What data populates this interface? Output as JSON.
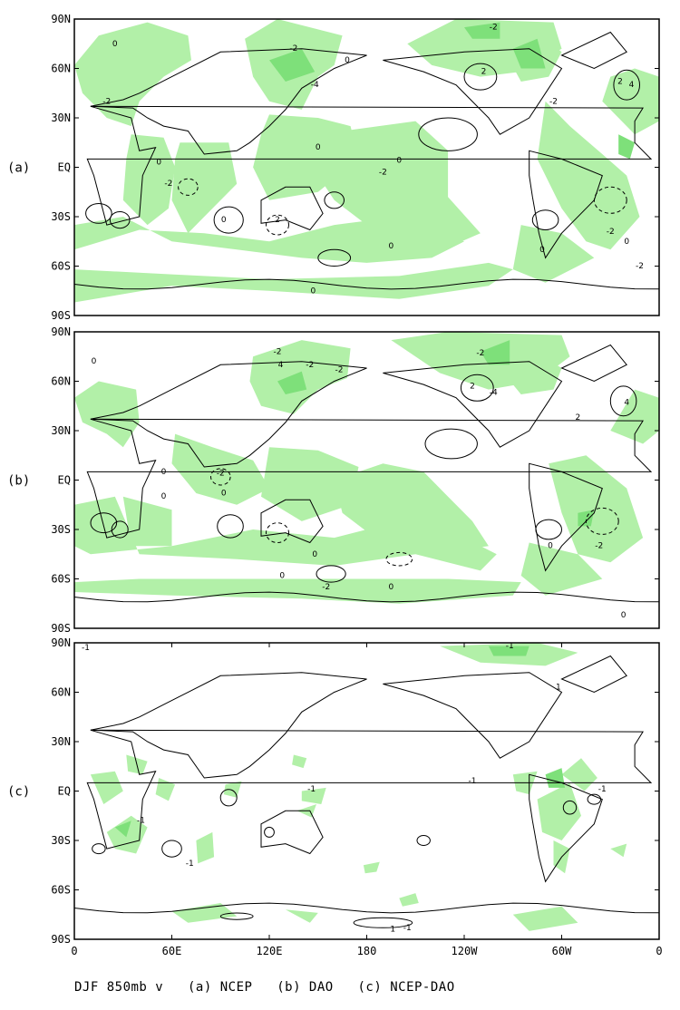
{
  "caption": "DJF 850mb v   (a) NCEP   (b) DAO   (c) NCEP-DAO",
  "colors": {
    "shade": "#b2f0a8",
    "shade_dark": "#7ee07a",
    "contour": "#000000"
  },
  "x_ticks": [
    "0",
    "60E",
    "120E",
    "180",
    "120W",
    "60W",
    "0"
  ],
  "y_ticks": [
    "90N",
    "60N",
    "30N",
    "EQ",
    "30S",
    "60S",
    "90S"
  ],
  "panels": [
    {
      "label": "(a)",
      "field": "NCEP",
      "contour_labels": [
        {
          "text": "0",
          "lon": 25,
          "lat": 75
        },
        {
          "text": "-2",
          "lon": 20,
          "lat": 40
        },
        {
          "text": "0",
          "lon": 52,
          "lat": 3
        },
        {
          "text": "-2",
          "lon": 58,
          "lat": -10
        },
        {
          "text": "2",
          "lon": 125,
          "lat": -32
        },
        {
          "text": "0",
          "lon": 92,
          "lat": -32
        },
        {
          "text": "-2",
          "lon": 190,
          "lat": -3
        },
        {
          "text": "0",
          "lon": 150,
          "lat": 12
        },
        {
          "text": "-2",
          "lon": 135,
          "lat": 72
        },
        {
          "text": "0",
          "lon": 168,
          "lat": 65
        },
        {
          "text": "-4",
          "lon": 148,
          "lat": 50
        },
        {
          "text": "-2",
          "lon": 258,
          "lat": 85
        },
        {
          "text": "2",
          "lon": 252,
          "lat": 58
        },
        {
          "text": "-2",
          "lon": 295,
          "lat": 40
        },
        {
          "text": "2",
          "lon": 336,
          "lat": 52
        },
        {
          "text": "4",
          "lon": 343,
          "lat": 50
        },
        {
          "text": "0",
          "lon": 200,
          "lat": 4
        },
        {
          "text": "0",
          "lon": 195,
          "lat": -48
        },
        {
          "text": "0",
          "lon": 288,
          "lat": -50
        },
        {
          "text": "-2",
          "lon": 330,
          "lat": -39
        },
        {
          "text": "0",
          "lon": 340,
          "lat": -45
        },
        {
          "text": "-2",
          "lon": 348,
          "lat": -60
        },
        {
          "text": "0",
          "lon": 147,
          "lat": -75
        }
      ]
    },
    {
      "label": "(b)",
      "field": "DAO",
      "contour_labels": [
        {
          "text": "0",
          "lon": 12,
          "lat": 72
        },
        {
          "text": "0",
          "lon": 55,
          "lat": 5
        },
        {
          "text": "0",
          "lon": 55,
          "lat": -10
        },
        {
          "text": "0",
          "lon": 92,
          "lat": -8
        },
        {
          "text": "-2",
          "lon": 90,
          "lat": 4
        },
        {
          "text": "-2",
          "lon": 125,
          "lat": 78
        },
        {
          "text": "4",
          "lon": 127,
          "lat": 70
        },
        {
          "text": "-2",
          "lon": 145,
          "lat": 70
        },
        {
          "text": "-2",
          "lon": 163,
          "lat": 67
        },
        {
          "text": "-2",
          "lon": 250,
          "lat": 77
        },
        {
          "text": "2",
          "lon": 245,
          "lat": 57
        },
        {
          "text": "-4",
          "lon": 258,
          "lat": 53
        },
        {
          "text": "2",
          "lon": 310,
          "lat": 38
        },
        {
          "text": "4",
          "lon": 340,
          "lat": 47
        },
        {
          "text": "0",
          "lon": 128,
          "lat": -58
        },
        {
          "text": "0",
          "lon": 148,
          "lat": -45
        },
        {
          "text": "-2",
          "lon": 155,
          "lat": -65
        },
        {
          "text": "0",
          "lon": 195,
          "lat": -65
        },
        {
          "text": "0",
          "lon": 293,
          "lat": -40
        },
        {
          "text": "-2",
          "lon": 323,
          "lat": -40
        },
        {
          "text": "0",
          "lon": 338,
          "lat": -82
        }
      ]
    },
    {
      "label": "(c)",
      "field": "NCEP-DAO",
      "contour_labels": [
        {
          "text": "-1",
          "lon": 7,
          "lat": 87
        },
        {
          "text": "-1",
          "lon": 268,
          "lat": 88
        },
        {
          "text": "1",
          "lon": 298,
          "lat": 63
        },
        {
          "text": "-1",
          "lon": 245,
          "lat": 6
        },
        {
          "text": "-1",
          "lon": 325,
          "lat": 1
        },
        {
          "text": "-1",
          "lon": 41,
          "lat": -18
        },
        {
          "text": "-1",
          "lon": 71,
          "lat": -44
        },
        {
          "text": "-1",
          "lon": 146,
          "lat": 1
        },
        {
          "text": "1",
          "lon": 196,
          "lat": -84
        },
        {
          "text": "-1",
          "lon": 205,
          "lat": -83
        }
      ]
    }
  ]
}
